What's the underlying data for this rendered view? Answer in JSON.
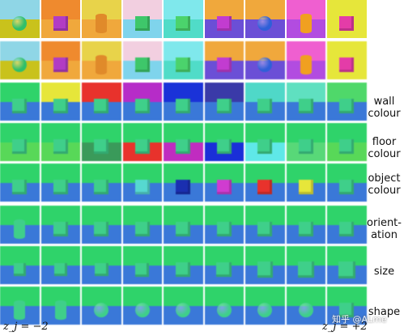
{
  "row_labels": [
    {
      "id": "wall",
      "lines": [
        "wall",
        "colour"
      ]
    },
    {
      "id": "floor",
      "lines": [
        "floor",
        "colour"
      ]
    },
    {
      "id": "object",
      "lines": [
        "object",
        "colour"
      ]
    },
    {
      "id": "orientation",
      "lines": [
        "orient-",
        "ation"
      ]
    },
    {
      "id": "size",
      "lines": [
        "size"
      ]
    },
    {
      "id": "shape",
      "lines": [
        "shape"
      ]
    }
  ],
  "axis": {
    "left": "z_j = −2",
    "right": "z_j = +2"
  },
  "watermark": "知乎 @ALme",
  "scene_rows": [
    [
      {
        "wall": "#8fd6e6",
        "floor": "#c9c21c",
        "obj": "#2fbf6a",
        "shape": "sphere"
      },
      {
        "wall": "#ef8a2e",
        "floor": "#f0a83c",
        "obj": "#b23cc4",
        "shape": "cube"
      },
      {
        "wall": "#e8d34a",
        "floor": "#f0a83c",
        "obj": "#e08a2a",
        "shape": "cylinder"
      },
      {
        "wall": "#f2cfe0",
        "floor": "#7fd4ec",
        "obj": "#3ec76a",
        "shape": "cube"
      },
      {
        "wall": "#7fe8ec",
        "floor": "#50dcc8",
        "obj": "#4bd36c",
        "shape": "cube"
      },
      {
        "wall": "#f0a83c",
        "floor": "#6b4fd6",
        "obj": "#c23cd0",
        "shape": "cube"
      },
      {
        "wall": "#f0a83c",
        "floor": "#6b4fd6",
        "obj": "#2f5fd8",
        "shape": "sphere"
      },
      {
        "wall": "#ef5fd0",
        "floor": "#b24ce0",
        "obj": "#f0a020",
        "shape": "cylinder"
      },
      {
        "wall": "#e6e63a",
        "floor": "#e6e63a",
        "obj": "#e43ca8",
        "shape": "cube"
      }
    ],
    [
      {
        "wall": "#8fd6e6",
        "floor": "#c9c21c",
        "obj": "#2fbf6a",
        "shape": "sphere"
      },
      {
        "wall": "#ef8a2e",
        "floor": "#f0a83c",
        "obj": "#b23cc4",
        "shape": "cube"
      },
      {
        "wall": "#e8d34a",
        "floor": "#f0a83c",
        "obj": "#e08a2a",
        "shape": "cylinder"
      },
      {
        "wall": "#f2cfe0",
        "floor": "#7fd4ec",
        "obj": "#3ec76a",
        "shape": "cube"
      },
      {
        "wall": "#7fe8ec",
        "floor": "#50dcc8",
        "obj": "#4bd36c",
        "shape": "cube"
      },
      {
        "wall": "#f0a83c",
        "floor": "#6b4fd6",
        "obj": "#c23cd0",
        "shape": "cube"
      },
      {
        "wall": "#f0a83c",
        "floor": "#6b4fd6",
        "obj": "#2f5fd8",
        "shape": "sphere"
      },
      {
        "wall": "#ef5fd0",
        "floor": "#b24ce0",
        "obj": "#f0a020",
        "shape": "cylinder"
      },
      {
        "wall": "#e6e63a",
        "floor": "#e6e63a",
        "obj": "#e43ca8",
        "shape": "cube"
      }
    ],
    [
      {
        "wall": "#2fd36a",
        "floor": "#3a78d8",
        "obj": "#3fcf8a",
        "shape": "cube"
      },
      {
        "wall": "#e6e63a",
        "floor": "#3a78d8",
        "obj": "#3fcf8a",
        "shape": "cube"
      },
      {
        "wall": "#e8322c",
        "floor": "#3a78d8",
        "obj": "#3fcf8a",
        "shape": "cube"
      },
      {
        "wall": "#b62cc8",
        "floor": "#3a78d8",
        "obj": "#3fcf8a",
        "shape": "cube"
      },
      {
        "wall": "#1a32d8",
        "floor": "#3a78d8",
        "obj": "#3fcf8a",
        "shape": "cube"
      },
      {
        "wall": "#3a3aa8",
        "floor": "#3a78d8",
        "obj": "#3fcf8a",
        "shape": "cube"
      },
      {
        "wall": "#4fd8c8",
        "floor": "#3a78d8",
        "obj": "#3fcf8a",
        "shape": "cube"
      },
      {
        "wall": "#5fe0c0",
        "floor": "#3a78d8",
        "obj": "#3fcf8a",
        "shape": "cube"
      },
      {
        "wall": "#4fd86a",
        "floor": "#3a78d8",
        "obj": "#3fcf8a",
        "shape": "cube"
      }
    ],
    [
      {
        "wall": "#2fd36a",
        "floor": "#58d858",
        "obj": "#3fcf8a",
        "shape": "cube"
      },
      {
        "wall": "#2fd36a",
        "floor": "#58d858",
        "obj": "#3fcf8a",
        "shape": "cube"
      },
      {
        "wall": "#2fd36a",
        "floor": "#3a9a5a",
        "obj": "#3fcf8a",
        "shape": "cube"
      },
      {
        "wall": "#2fd36a",
        "floor": "#e8322c",
        "obj": "#3fcf8a",
        "shape": "cube"
      },
      {
        "wall": "#2fd36a",
        "floor": "#c02cc0",
        "obj": "#3fcf8a",
        "shape": "cube"
      },
      {
        "wall": "#2fd36a",
        "floor": "#1a2fd8",
        "obj": "#3fcf8a",
        "shape": "cube"
      },
      {
        "wall": "#2fd36a",
        "floor": "#5fe8e8",
        "obj": "#3fcf8a",
        "shape": "cube"
      },
      {
        "wall": "#2fd36a",
        "floor": "#58d878",
        "obj": "#3fcf8a",
        "shape": "cube"
      },
      {
        "wall": "#2fd36a",
        "floor": "#58d858",
        "obj": "#3fcf8a",
        "shape": "cube"
      }
    ],
    [
      {
        "wall": "#2fd36a",
        "floor": "#3a78d8",
        "obj": "#3fcf8a",
        "shape": "cube"
      },
      {
        "wall": "#2fd36a",
        "floor": "#3a78d8",
        "obj": "#3fcf8a",
        "shape": "cube"
      },
      {
        "wall": "#2fd36a",
        "floor": "#3a78d8",
        "obj": "#3fcf8a",
        "shape": "cube"
      },
      {
        "wall": "#2fd36a",
        "floor": "#3a78d8",
        "obj": "#56d8d0",
        "shape": "cube"
      },
      {
        "wall": "#2fd36a",
        "floor": "#3a78d8",
        "obj": "#1a2fb0",
        "shape": "cube"
      },
      {
        "wall": "#2fd36a",
        "floor": "#3a78d8",
        "obj": "#d03cd0",
        "shape": "cube"
      },
      {
        "wall": "#2fd36a",
        "floor": "#3a78d8",
        "obj": "#e8322c",
        "shape": "cube"
      },
      {
        "wall": "#2fd36a",
        "floor": "#3a78d8",
        "obj": "#e6e63a",
        "shape": "cube"
      },
      {
        "wall": "#2fd36a",
        "floor": "#3a78d8",
        "obj": "#3fcf8a",
        "shape": "cube"
      }
    ],
    [
      {
        "wall": "#2fd36a",
        "floor": "#3a78d8",
        "obj": "#3fcf8a",
        "shape": "cylinder"
      },
      {
        "wall": "#2fd36a",
        "floor": "#3a78d8",
        "obj": "#3fcf8a",
        "shape": "cube"
      },
      {
        "wall": "#2fd36a",
        "floor": "#3a78d8",
        "obj": "#3fcf8a",
        "shape": "cube"
      },
      {
        "wall": "#2fd36a",
        "floor": "#3a78d8",
        "obj": "#3fcf8a",
        "shape": "cube"
      },
      {
        "wall": "#2fd36a",
        "floor": "#3a78d8",
        "obj": "#3fcf8a",
        "shape": "cube"
      },
      {
        "wall": "#2fd36a",
        "floor": "#3a78d8",
        "obj": "#3fcf8a",
        "shape": "cube"
      },
      {
        "wall": "#2fd36a",
        "floor": "#3a78d8",
        "obj": "#3fcf8a",
        "shape": "cube"
      },
      {
        "wall": "#2fd36a",
        "floor": "#3a78d8",
        "obj": "#3fcf8a",
        "shape": "cube"
      },
      {
        "wall": "#2fd36a",
        "floor": "#3a78d8",
        "obj": "#3fcf8a",
        "shape": "cube"
      }
    ],
    [
      {
        "wall": "#2fd36a",
        "floor": "#3a78d8",
        "obj": "#3fcf8a",
        "shape": "cube"
      },
      {
        "wall": "#2fd36a",
        "floor": "#3a78d8",
        "obj": "#3fcf8a",
        "shape": "cube"
      },
      {
        "wall": "#2fd36a",
        "floor": "#3a78d8",
        "obj": "#3fcf8a",
        "shape": "cube"
      },
      {
        "wall": "#2fd36a",
        "floor": "#3a78d8",
        "obj": "#3fcf8a",
        "shape": "cube"
      },
      {
        "wall": "#2fd36a",
        "floor": "#3a78d8",
        "obj": "#3fcf8a",
        "shape": "cube"
      },
      {
        "wall": "#2fd36a",
        "floor": "#3a78d8",
        "obj": "#3fcf8a",
        "shape": "cube"
      },
      {
        "wall": "#2fd36a",
        "floor": "#3a78d8",
        "obj": "#3fcf8a",
        "shape": "cube"
      },
      {
        "wall": "#2fd36a",
        "floor": "#3a78d8",
        "obj": "#3fcf8a",
        "shape": "cube"
      },
      {
        "wall": "#2fd36a",
        "floor": "#3a78d8",
        "obj": "#3fcf8a",
        "shape": "cube"
      }
    ],
    [
      {
        "wall": "#2fd36a",
        "floor": "#3a78d8",
        "obj": "#3fcf8a",
        "shape": "cylinder"
      },
      {
        "wall": "#2fd36a",
        "floor": "#3a78d8",
        "obj": "#3fcf8a",
        "shape": "cylinder"
      },
      {
        "wall": "#2fd36a",
        "floor": "#3a78d8",
        "obj": "#3fcf8a",
        "shape": "sphere"
      },
      {
        "wall": "#2fd36a",
        "floor": "#3a78d8",
        "obj": "#3fcf8a",
        "shape": "sphere"
      },
      {
        "wall": "#2fd36a",
        "floor": "#3a78d8",
        "obj": "#3fcf8a",
        "shape": "sphere"
      },
      {
        "wall": "#2fd36a",
        "floor": "#3a78d8",
        "obj": "#3fcf8a",
        "shape": "sphere"
      },
      {
        "wall": "#2fd36a",
        "floor": "#3a78d8",
        "obj": "#3fcf8a",
        "shape": "sphere"
      },
      {
        "wall": "#2fd36a",
        "floor": "#3a78d8",
        "obj": "#3fcf8a",
        "shape": "sphere"
      },
      {
        "wall": "#2fd36a",
        "floor": "#3a78d8",
        "obj": "#3fcf8a",
        "shape": "cube"
      }
    ]
  ],
  "row_scale": [
    [
      1,
      1,
      1,
      1,
      1,
      1,
      1,
      1,
      1
    ],
    [
      1,
      1,
      1,
      1,
      1,
      1,
      1,
      1,
      1
    ],
    [
      1,
      1,
      1,
      1,
      1,
      1,
      1,
      1,
      1
    ],
    [
      1,
      1,
      1,
      1,
      1,
      1,
      1,
      1,
      1
    ],
    [
      1,
      1,
      1,
      1,
      1,
      1,
      1,
      1,
      1
    ],
    [
      1,
      1,
      1,
      1,
      1,
      1,
      1,
      1,
      1
    ],
    [
      0.85,
      0.88,
      0.92,
      0.96,
      1,
      1.04,
      1.08,
      1.12,
      1.16
    ],
    [
      1,
      1,
      1,
      1,
      1,
      1,
      1,
      1,
      1
    ]
  ]
}
